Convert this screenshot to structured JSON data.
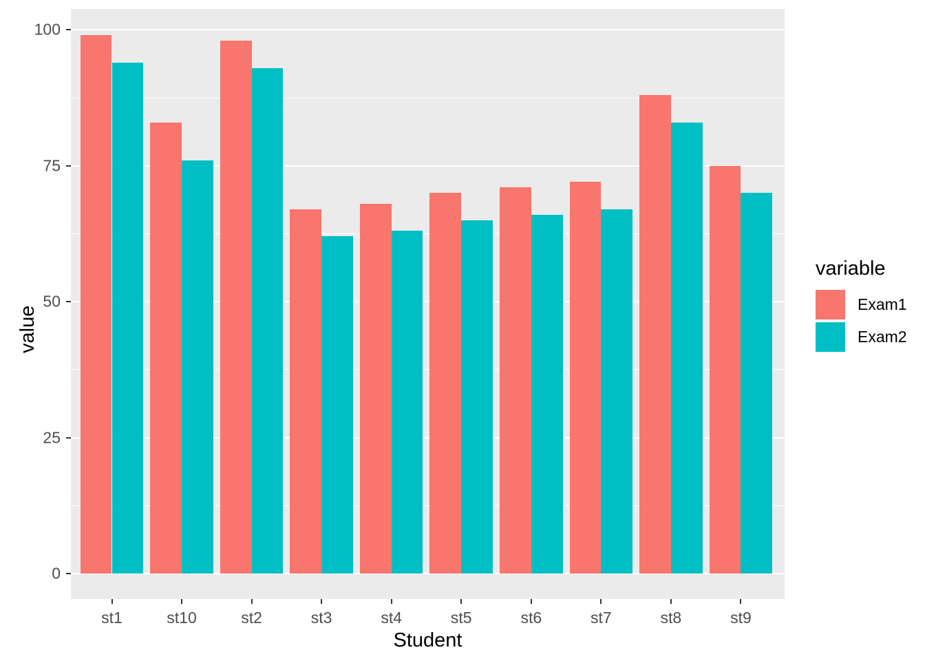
{
  "chart_data": {
    "type": "bar",
    "title": "",
    "xlabel": "Student",
    "ylabel": "value",
    "categories": [
      "st1",
      "st10",
      "st2",
      "st3",
      "st4",
      "st5",
      "st6",
      "st7",
      "st8",
      "st9"
    ],
    "series": [
      {
        "name": "Exam1",
        "color": "#F8766D",
        "values": [
          99,
          83,
          98,
          67,
          68,
          70,
          71,
          72,
          88,
          75
        ]
      },
      {
        "name": "Exam2",
        "color": "#00BFC4",
        "values": [
          94,
          76,
          93,
          62,
          63,
          65,
          66,
          67,
          83,
          70
        ]
      }
    ],
    "y_major_ticks": [
      0,
      25,
      50,
      75,
      100
    ],
    "y_minor_ticks": [
      12.5,
      37.5,
      62.5,
      87.5
    ],
    "ylim": [
      -4.7,
      103.8
    ],
    "grid": true,
    "legend": {
      "title": "variable",
      "position": "right"
    },
    "colors": {
      "panel_background": "#EBEBEB",
      "gridline": "#FFFFFF",
      "tick_label": "#4D4D4D",
      "axis_title": "#000000"
    }
  }
}
